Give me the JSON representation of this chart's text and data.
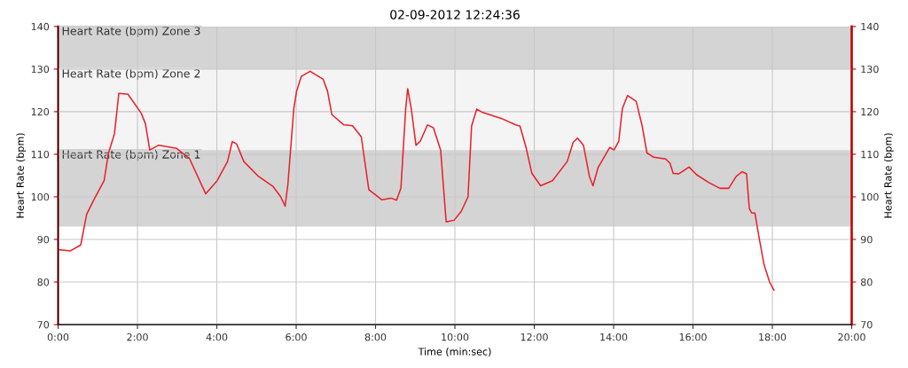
{
  "chart_data": {
    "type": "line",
    "title": "02-09-2012 12:24:36",
    "xlabel": "Time (min:sec)",
    "ylabel": "Heart Rate (bpm)",
    "y2label": "Heart Rate (bpm)",
    "xlim": [
      0,
      20
    ],
    "xticks": [
      {
        "value": 0,
        "label": "0:00"
      },
      {
        "value": 2,
        "label": "2:00"
      },
      {
        "value": 4,
        "label": "4:00"
      },
      {
        "value": 6,
        "label": "6:00"
      },
      {
        "value": 8,
        "label": "8:00"
      },
      {
        "value": 10,
        "label": "10:00"
      },
      {
        "value": 12,
        "label": "12:00"
      },
      {
        "value": 14,
        "label": "14:00"
      },
      {
        "value": 16,
        "label": "16:00"
      },
      {
        "value": 18,
        "label": "18:00"
      },
      {
        "value": 20,
        "label": "20:00"
      }
    ],
    "ylim": [
      70,
      140
    ],
    "yticks": [
      70,
      80,
      90,
      100,
      110,
      120,
      130,
      140
    ],
    "y2lim": [
      70,
      140
    ],
    "y2ticks": [
      70,
      80,
      90,
      100,
      110,
      120,
      130,
      140
    ],
    "grid": true,
    "line_style": "solid",
    "marker": "none",
    "bands": [
      {
        "axis": "y",
        "from": 130,
        "to": 140,
        "label": "Heart Rate (bpm) Zone 3",
        "color": "#d4d4d4"
      },
      {
        "axis": "y",
        "from": 111,
        "to": 130,
        "label": "Heart Rate (bpm) Zone 2",
        "color": "#f4f4f4"
      },
      {
        "axis": "y",
        "from": 93,
        "to": 111,
        "label": "Heart Rate (bpm) Zone 1",
        "color": "#d4d4d4"
      }
    ],
    "series": [
      {
        "color": "#e8202a",
        "x": [
          0.01,
          0.31,
          0.57,
          0.72,
          0.9,
          1.16,
          1.27,
          1.42,
          1.53,
          1.76,
          2.09,
          2.2,
          2.31,
          2.53,
          2.98,
          3.31,
          3.72,
          4.01,
          4.27,
          4.39,
          4.5,
          4.68,
          5.05,
          5.42,
          5.61,
          5.72,
          5.79,
          5.94,
          6.01,
          6.13,
          6.35,
          6.68,
          6.79,
          6.9,
          7.2,
          7.42,
          7.64,
          7.83,
          8.16,
          8.39,
          8.53,
          8.64,
          8.76,
          8.81,
          8.9,
          9.02,
          9.13,
          9.31,
          9.46,
          9.64,
          9.78,
          9.98,
          10.16,
          10.33,
          10.42,
          10.55,
          10.68,
          11.2,
          11.53,
          11.64,
          11.79,
          11.94,
          12.16,
          12.46,
          12.83,
          12.98,
          13.09,
          13.24,
          13.39,
          13.48,
          13.61,
          13.9,
          14.01,
          14.13,
          14.22,
          14.35,
          14.57,
          14.72,
          14.84,
          15.01,
          15.31,
          15.42,
          15.5,
          15.64,
          15.9,
          16.09,
          16.39,
          16.68,
          16.9,
          17.09,
          17.24,
          17.35,
          17.42,
          17.48,
          17.56,
          17.68,
          17.79,
          17.93,
          18.04
        ],
        "values": [
          87.6,
          87.3,
          88.7,
          95.9,
          99.3,
          103.8,
          110.3,
          114.8,
          124.3,
          124.1,
          119.7,
          117.2,
          111.0,
          112.1,
          111.4,
          109.0,
          100.7,
          103.8,
          108.3,
          113.0,
          112.4,
          108.3,
          104.8,
          102.4,
          100.0,
          97.8,
          102.8,
          120.7,
          124.8,
          128.3,
          129.5,
          127.6,
          124.8,
          119.3,
          116.9,
          116.7,
          114.1,
          101.7,
          99.3,
          99.7,
          99.2,
          102.1,
          120.7,
          125.4,
          120.7,
          112.1,
          113.1,
          116.9,
          116.2,
          111.0,
          94.1,
          94.5,
          96.6,
          100.0,
          116.6,
          120.6,
          119.9,
          118.3,
          116.9,
          116.6,
          111.7,
          105.5,
          102.6,
          103.8,
          108.3,
          112.8,
          113.8,
          112.1,
          104.8,
          102.6,
          106.9,
          111.6,
          111.0,
          113.1,
          120.7,
          123.8,
          122.4,
          116.6,
          110.3,
          109.3,
          108.9,
          107.9,
          105.5,
          105.4,
          107.0,
          105.2,
          103.4,
          102.0,
          102.0,
          104.8,
          105.9,
          105.4,
          97.2,
          96.2,
          96.2,
          89.7,
          84.1,
          80.0,
          78.1
        ]
      }
    ]
  }
}
